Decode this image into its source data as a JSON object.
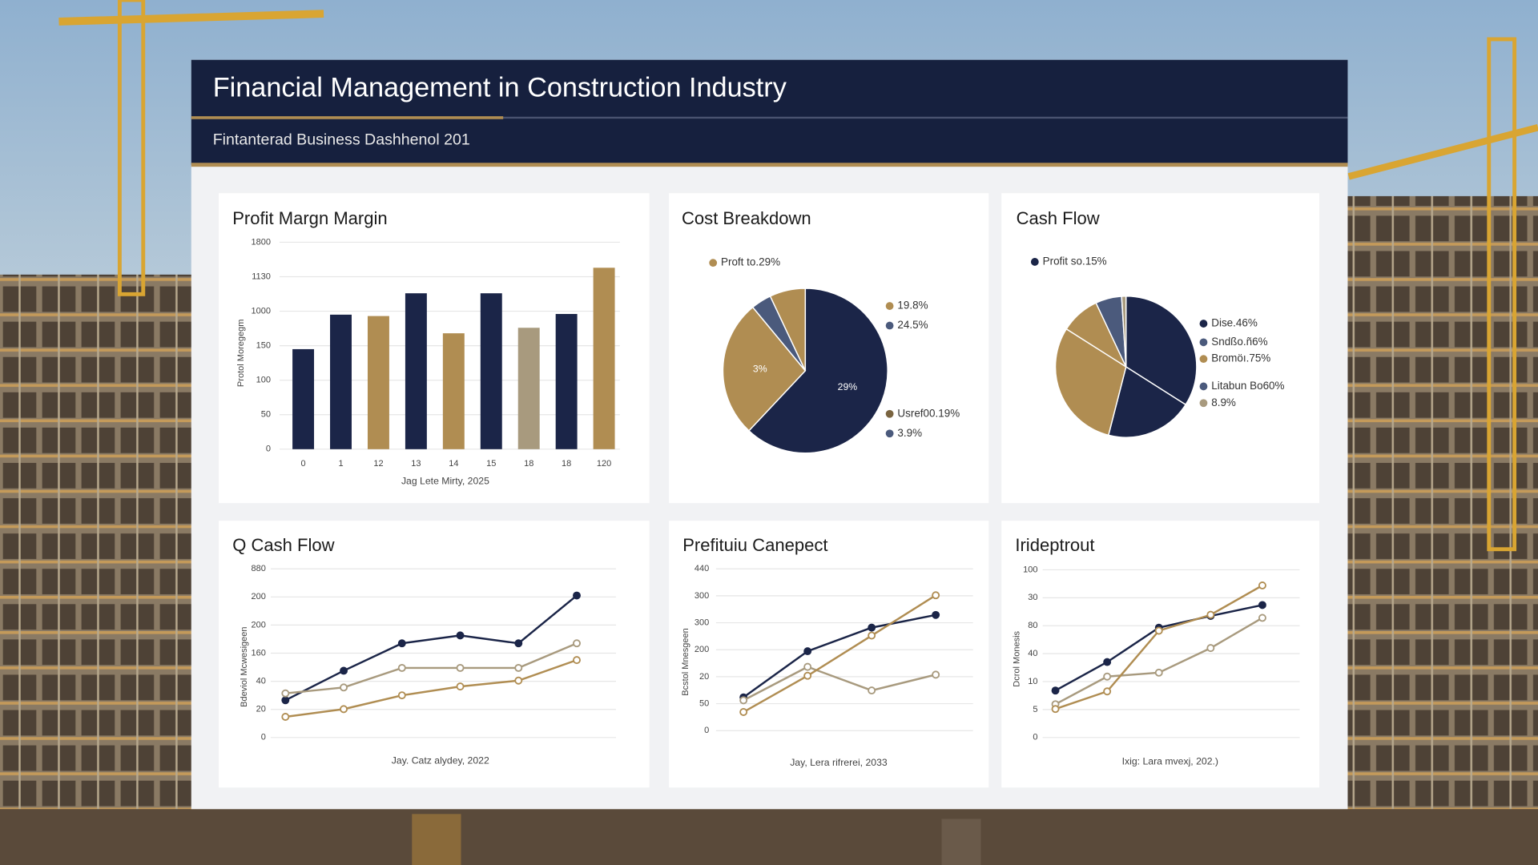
{
  "header": {
    "title": "Financial Management in Construction Industry",
    "subtitle": "Fintanterad Business Dashhenol 201"
  },
  "chart_data": [
    {
      "type": "bar",
      "title": "Profit Margn Margin",
      "x_label": "Jag Lete Mirty, 2025",
      "y_label": "Protol Moregegm",
      "categories": [
        "0",
        "1",
        "12",
        "13",
        "14",
        "15",
        "18",
        "18",
        "120"
      ],
      "values": [
        145,
        195,
        193,
        226,
        168,
        226,
        176,
        196,
        263
      ],
      "colors": [
        "#1b2548",
        "#1b2548",
        "#b08d52",
        "#1b2548",
        "#b08d52",
        "#1b2548",
        "#a89a7e",
        "#1b2548",
        "#b08d52"
      ],
      "ylim": [
        0,
        300
      ],
      "yticks": [
        0,
        50,
        100,
        150,
        {
          "value": 200,
          "label": "1000"
        },
        {
          "value": 250,
          "label": "1130"
        },
        {
          "value": 300,
          "label": "1800"
        }
      ],
      "grid": true
    },
    {
      "type": "pie",
      "title": "Cost Breakdown",
      "values": [
        62,
        27,
        4,
        7
      ],
      "colors": [
        "#1b2548",
        "#b08d52",
        "#4b5a7c",
        "#b08d52"
      ],
      "annotations": [
        "29%",
        "3%"
      ],
      "legend": [
        {
          "label": "Proft to.29%",
          "color": "#b08d52"
        },
        {
          "label": "19.8%",
          "color": "#b08d52"
        },
        {
          "label": "24.5%",
          "color": "#4b5a7c"
        },
        {
          "label": "Usref00.19%",
          "color": "#7a6440"
        },
        {
          "label": "3.9%",
          "color": "#4b5a7c"
        }
      ]
    },
    {
      "type": "pie",
      "title": "Cash Flow",
      "values": [
        34,
        20,
        30,
        9,
        6,
        1
      ],
      "colors": [
        "#1b2548",
        "#1b2548",
        "#b08d52",
        "#b08d52",
        "#4b5a7c",
        "#a89a7e"
      ],
      "legend": [
        {
          "label": "Profit so.15%",
          "color": "#1b2548"
        },
        {
          "label": "Dise.46%",
          "color": "#1b2548"
        },
        {
          "label": "Sndßo.ñ6%",
          "color": "#4b5a7c"
        },
        {
          "label": "Bromöı.75%",
          "color": "#b08d52"
        },
        {
          "label": "Litabun Bo60%",
          "color": "#4b5a7c"
        },
        {
          "label": "8.9%",
          "color": "#a89a7e"
        }
      ]
    },
    {
      "type": "line",
      "title": "Q Cash Flow",
      "x_label": "Jay. Catz alydey, 2022",
      "y_label": "Bdeviol Mcwesigeen",
      "categories": [
        null,
        null,
        null,
        null,
        null,
        null
      ],
      "series": [
        {
          "color": "#1b2548",
          "values": [
            26.5,
            47.5,
            67,
            72.6,
            67,
            101
          ]
        },
        {
          "color": "#a89a7e",
          "values": [
            31.4,
            35.6,
            49.5,
            49.5,
            49.5,
            67
          ]
        },
        {
          "color": "#b08d52",
          "values": [
            14.7,
            20.2,
            30,
            36.3,
            40.5,
            55.1
          ]
        }
      ],
      "ylim": [
        0,
        120
      ],
      "yticks": [
        0,
        20,
        40,
        {
          "value": 60,
          "label": "160"
        },
        {
          "value": 80,
          "label": "200"
        },
        {
          "value": 100,
          "label": "200"
        },
        {
          "value": 120,
          "label": "880"
        }
      ],
      "grid": true
    },
    {
      "type": "line",
      "title": "Prefituiu Canepect",
      "x_label": "Jay, Lera rifrerei, 2033",
      "y_label": "Bcstol Mnesgeen",
      "categories": [
        null,
        null,
        null,
        null
      ],
      "series": [
        {
          "color": "#1b2548",
          "values": [
            24.7,
            58.9,
            76.4,
            85.8
          ]
        },
        {
          "color": "#a89a7e",
          "values": [
            22.5,
            47.3,
            29.8,
            41.5
          ]
        },
        {
          "color": "#b08d52",
          "values": [
            13.8,
            40.7,
            70.5,
            100.4
          ]
        }
      ],
      "ylim": [
        0,
        120
      ],
      "yticks": [
        0,
        {
          "value": 20,
          "label": "50"
        },
        {
          "value": 40,
          "label": "20"
        },
        {
          "value": 60,
          "label": "200"
        },
        {
          "value": 80,
          "label": "300"
        },
        {
          "value": 100,
          "label": "300"
        },
        {
          "value": 120,
          "label": "440"
        }
      ],
      "grid": true
    },
    {
      "type": "line",
      "title": "Irideptrout",
      "x_label": "Ixig: Lara mvexj, 202.)",
      "y_label": "Dcrol Monesis",
      "categories": [
        null,
        null,
        null,
        null,
        null
      ],
      "series": [
        {
          "color": "#1b2548",
          "values": [
            16.8,
            27,
            39.3,
            43.5,
            47.4
          ]
        },
        {
          "color": "#a89a7e",
          "values": [
            11.9,
            21.8,
            23.2,
            32,
            42.8
          ]
        },
        {
          "color": "#b08d52",
          "values": [
            10.2,
            16.5,
            38.2,
            43.9,
            54.4
          ]
        }
      ],
      "ylim": [
        0,
        60
      ],
      "yticks": [
        0,
        {
          "value": 10,
          "label": "5"
        },
        {
          "value": 20,
          "label": "10"
        },
        {
          "value": 30,
          "label": "40"
        },
        {
          "value": 40,
          "label": "80"
        },
        {
          "value": 50,
          "label": "30"
        },
        {
          "value": 60,
          "label": "100"
        }
      ],
      "grid": true
    }
  ]
}
